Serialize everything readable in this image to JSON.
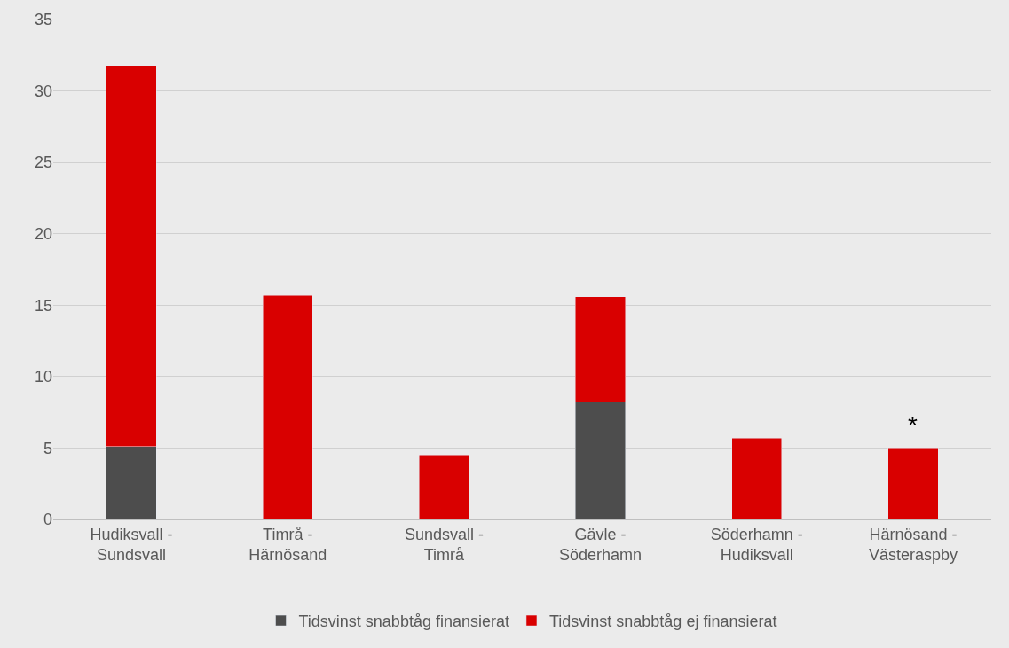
{
  "chart_data": {
    "type": "bar",
    "stacked": true,
    "categories": [
      "Hudiksvall -\nSundsvall",
      "Timrå -\nHärnösand",
      "Sundsvall -\nTimrå",
      "Gävle -\nSöderhamn",
      "Söderhamn -\nHudiksvall",
      "Härnösand -\nVästeraspby"
    ],
    "series": [
      {
        "name": "Tidsvinst snabbtåg finansierat",
        "color": "#4d4d4d",
        "values": [
          5.1,
          null,
          null,
          8.2,
          null,
          null
        ]
      },
      {
        "name": "Tidsvinst snabbtåg ej finansierat",
        "color": "#d90000",
        "values": [
          26.7,
          15.7,
          4.5,
          7.4,
          5.7,
          5.0
        ]
      }
    ],
    "ylim": [
      0,
      35
    ],
    "yticks": [
      0,
      5,
      10,
      15,
      20,
      25,
      30,
      35
    ],
    "grid": "y",
    "legend": "bottom",
    "annotations": [
      {
        "text": "*",
        "x": "Härnösand -\nVästeraspby",
        "y": 5.0
      }
    ]
  }
}
